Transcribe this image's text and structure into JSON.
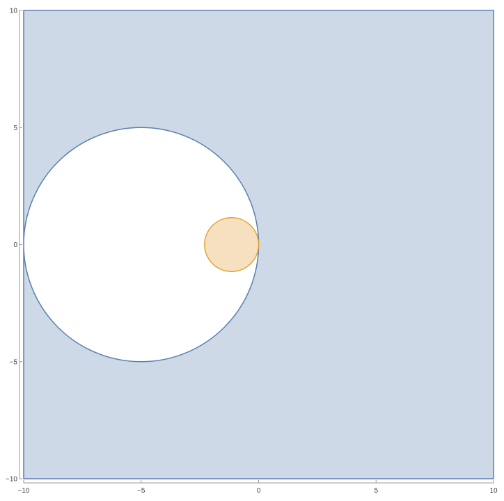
{
  "chart_data": {
    "type": "region",
    "title": "",
    "xlabel": "",
    "ylabel": "",
    "xlim": [
      -10,
      10
    ],
    "ylim": [
      -10,
      10
    ],
    "grid": false,
    "legend": "none",
    "x_ticks": [
      {
        "value": -10,
        "label": "−10"
      },
      {
        "value": -5,
        "label": "−5"
      },
      {
        "value": 0,
        "label": "0"
      },
      {
        "value": 5,
        "label": "5"
      },
      {
        "value": 10,
        "label": "10"
      }
    ],
    "y_ticks": [
      {
        "value": -10,
        "label": "−10"
      },
      {
        "value": -5,
        "label": "−5"
      },
      {
        "value": 0,
        "label": "0"
      },
      {
        "value": 5,
        "label": "5"
      },
      {
        "value": 10,
        "label": "10"
      }
    ],
    "regions": [
      {
        "shape": "square-minus-disk",
        "square": {
          "xmin": -10,
          "xmax": 10,
          "ymin": -10,
          "ymax": 10
        },
        "hole": {
          "cx": -5,
          "cy": 0,
          "r": 5
        },
        "fill": "#cdd9e7",
        "stroke": "#5c7fb3"
      },
      {
        "shape": "disk",
        "cx": -1.15,
        "cy": 0,
        "r": 1.15,
        "fill": "#f7e0bf",
        "stroke": "#e3a028"
      }
    ]
  }
}
